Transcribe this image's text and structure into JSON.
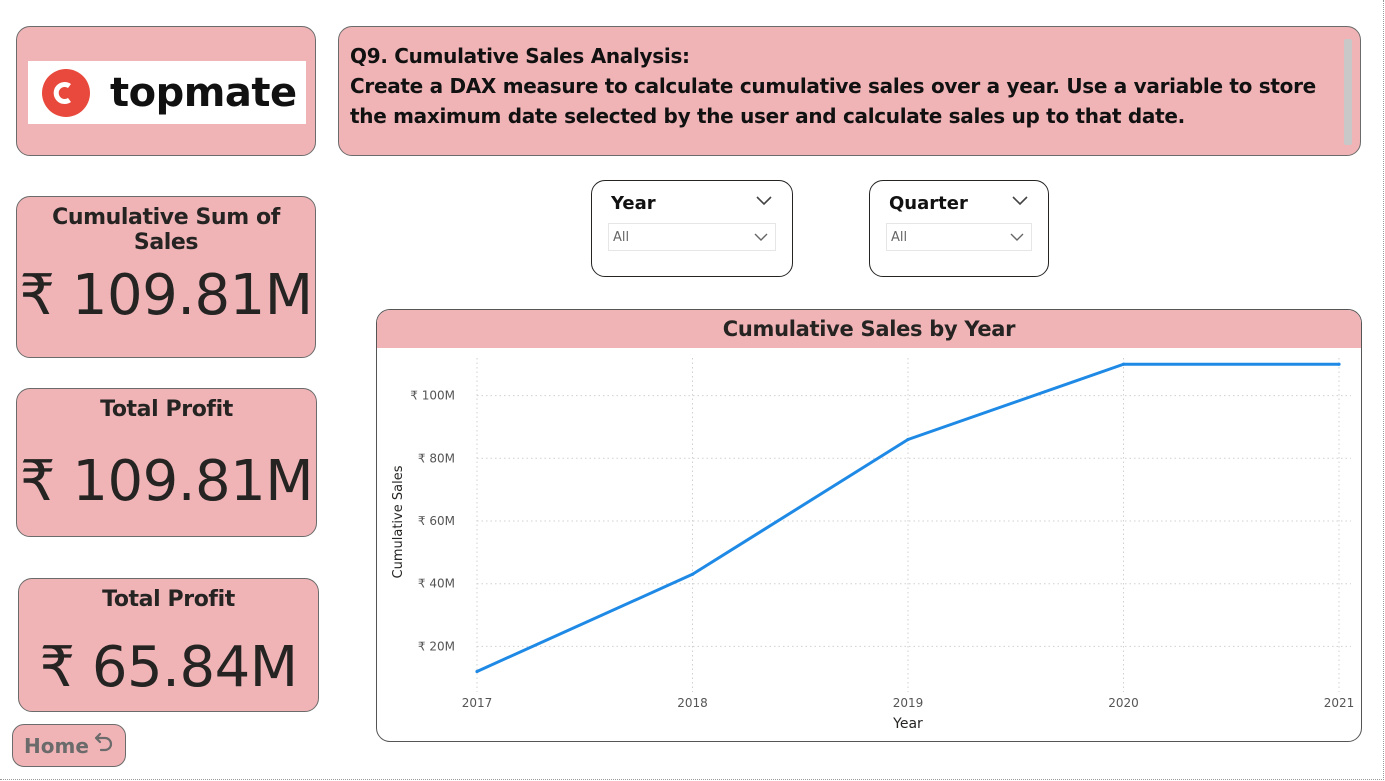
{
  "logo": {
    "text": "topmate",
    "color": "#e8493c"
  },
  "question": {
    "line1": "Q9. Cumulative Sales Analysis:",
    "line2": "Create a DAX measure to calculate cumulative sales over a year. Use a variable to store the maximum date selected by the user and calculate sales up to that date."
  },
  "kpis": [
    {
      "title": "Cumulative Sum of Sales",
      "value": "₹ 109.81M"
    },
    {
      "title": "Total Profit",
      "value": "₹ 109.81M"
    },
    {
      "title": "Total Profit",
      "value": "₹ 65.84M"
    }
  ],
  "home_button": {
    "label": "Home"
  },
  "slicers": {
    "year": {
      "title": "Year",
      "value": "All"
    },
    "quarter": {
      "title": "Quarter",
      "value": "All"
    }
  },
  "colors": {
    "card_bg": "#f0b4b7",
    "line": "#1f8ae6"
  },
  "chart_data": {
    "type": "line",
    "title": "Cumulative Sales by Year",
    "xlabel": "Year",
    "ylabel": "Cumulative Sales",
    "x": [
      "2017",
      "2018",
      "2019",
      "2020",
      "2021"
    ],
    "series": [
      {
        "values": [
          12,
          43,
          86,
          110,
          110
        ]
      }
    ],
    "ylim": [
      8,
      112
    ],
    "yticks": [
      20,
      40,
      60,
      80,
      100
    ],
    "ytick_labels": [
      "₹ 20M",
      "₹ 40M",
      "₹ 60M",
      "₹ 80M",
      "₹ 100M"
    ],
    "grid": true,
    "legend": "none"
  }
}
